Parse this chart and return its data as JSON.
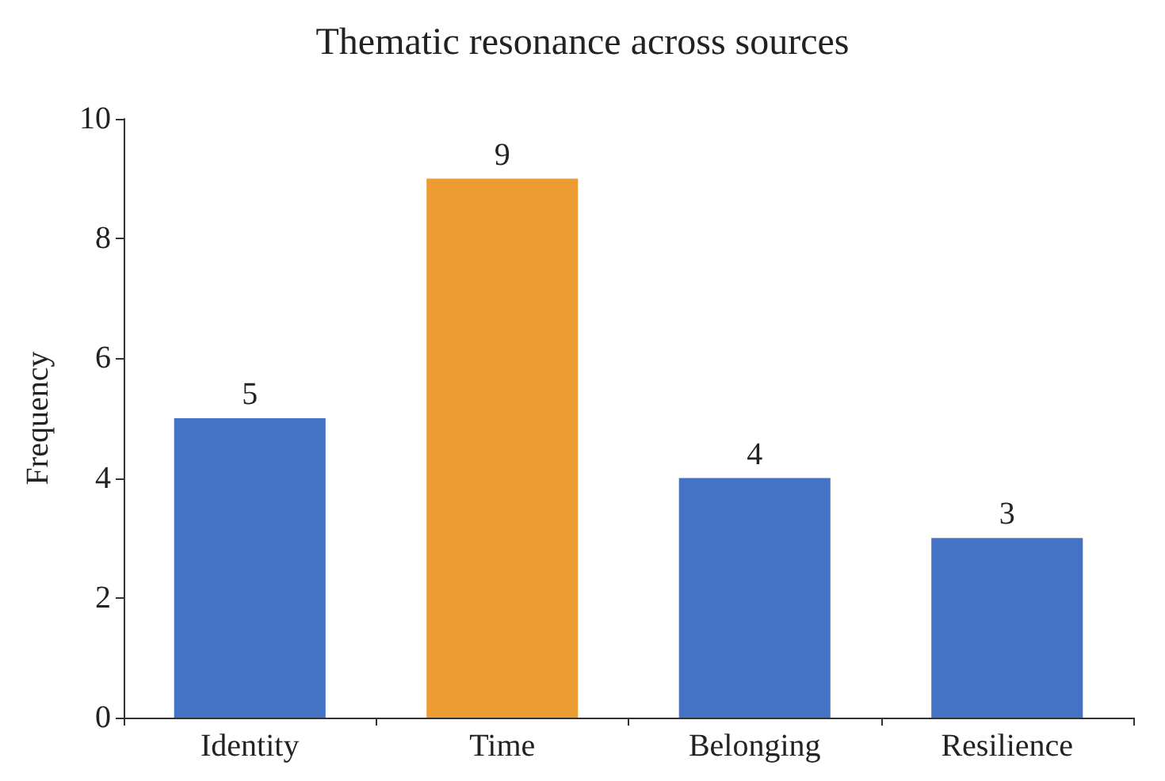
{
  "chart_data": {
    "type": "bar",
    "title": "Thematic resonance across sources",
    "ylabel": "Frequency",
    "categories": [
      "Identity",
      "Time",
      "Belonging",
      "Resilience"
    ],
    "values": [
      5,
      9,
      4,
      3
    ],
    "colors": [
      "#4472c4",
      "#ed9b33",
      "#4472c4",
      "#4472c4"
    ],
    "ylim": [
      0,
      10
    ],
    "yticks": [
      0,
      2,
      4,
      6,
      8,
      10
    ],
    "grid": false,
    "data_labels": true
  }
}
